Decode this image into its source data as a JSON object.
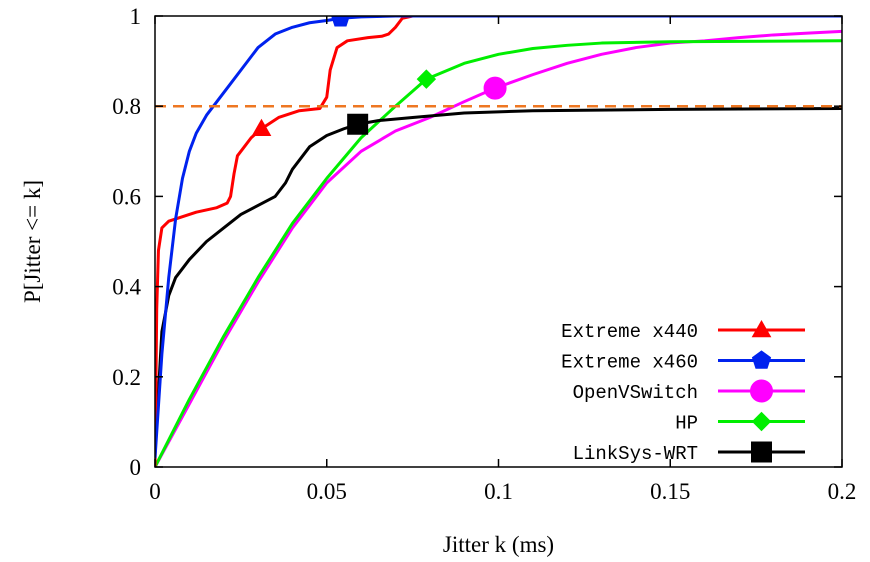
{
  "chart_data": {
    "type": "line",
    "title": "",
    "xlabel": "Jitter k (ms)",
    "ylabel": "P[Jitter <= k]",
    "xlim": [
      0,
      0.2
    ],
    "ylim": [
      0,
      1
    ],
    "x_ticks": [
      "0",
      "0.05",
      "0.1",
      "0.15",
      "0.2"
    ],
    "y_ticks": [
      "0",
      "0.2",
      "0.4",
      "0.6",
      "0.8",
      "1"
    ],
    "grid": false,
    "legend_position": "bottom-right",
    "reference_line": {
      "y": 0.8,
      "style": "dashed",
      "color": "#ee7722"
    },
    "series": [
      {
        "name": "Extreme x440",
        "color": "#ff0000",
        "marker": "triangle",
        "marker_point": [
          0.031,
          0.75
        ],
        "points": [
          [
            0,
            0.0
          ],
          [
            0.0005,
            0.35
          ],
          [
            0.001,
            0.48
          ],
          [
            0.002,
            0.53
          ],
          [
            0.004,
            0.545
          ],
          [
            0.008,
            0.555
          ],
          [
            0.012,
            0.565
          ],
          [
            0.018,
            0.575
          ],
          [
            0.021,
            0.585
          ],
          [
            0.022,
            0.6
          ],
          [
            0.023,
            0.65
          ],
          [
            0.024,
            0.69
          ],
          [
            0.026,
            0.71
          ],
          [
            0.028,
            0.73
          ],
          [
            0.031,
            0.75
          ],
          [
            0.036,
            0.775
          ],
          [
            0.042,
            0.79
          ],
          [
            0.048,
            0.795
          ],
          [
            0.05,
            0.82
          ],
          [
            0.051,
            0.88
          ],
          [
            0.053,
            0.93
          ],
          [
            0.056,
            0.945
          ],
          [
            0.062,
            0.952
          ],
          [
            0.066,
            0.955
          ],
          [
            0.068,
            0.96
          ],
          [
            0.07,
            0.975
          ],
          [
            0.072,
            0.995
          ],
          [
            0.075,
            1.0
          ],
          [
            0.117,
            1.0
          ]
        ]
      },
      {
        "name": "Extreme x460",
        "color": "#0022ee",
        "marker": "pentagon",
        "marker_point": [
          0.054,
          0.995
        ],
        "points": [
          [
            0,
            0.02
          ],
          [
            0.002,
            0.25
          ],
          [
            0.004,
            0.42
          ],
          [
            0.006,
            0.55
          ],
          [
            0.008,
            0.64
          ],
          [
            0.01,
            0.7
          ],
          [
            0.012,
            0.74
          ],
          [
            0.015,
            0.78
          ],
          [
            0.018,
            0.81
          ],
          [
            0.021,
            0.84
          ],
          [
            0.025,
            0.88
          ],
          [
            0.03,
            0.93
          ],
          [
            0.035,
            0.96
          ],
          [
            0.04,
            0.975
          ],
          [
            0.045,
            0.985
          ],
          [
            0.05,
            0.99
          ],
          [
            0.054,
            0.995
          ],
          [
            0.06,
            0.998
          ],
          [
            0.07,
            1.0
          ],
          [
            0.2,
            1.0
          ]
        ]
      },
      {
        "name": "OpenVSwitch",
        "color": "#ff00ff",
        "marker": "circle",
        "marker_point": [
          0.099,
          0.84
        ],
        "points": [
          [
            0,
            0.0
          ],
          [
            0.01,
            0.14
          ],
          [
            0.02,
            0.28
          ],
          [
            0.03,
            0.41
          ],
          [
            0.04,
            0.53
          ],
          [
            0.05,
            0.63
          ],
          [
            0.06,
            0.7
          ],
          [
            0.07,
            0.745
          ],
          [
            0.08,
            0.775
          ],
          [
            0.09,
            0.81
          ],
          [
            0.099,
            0.84
          ],
          [
            0.11,
            0.87
          ],
          [
            0.12,
            0.895
          ],
          [
            0.13,
            0.915
          ],
          [
            0.14,
            0.93
          ],
          [
            0.15,
            0.94
          ],
          [
            0.16,
            0.945
          ],
          [
            0.17,
            0.952
          ],
          [
            0.18,
            0.958
          ],
          [
            0.19,
            0.962
          ],
          [
            0.2,
            0.966
          ]
        ]
      },
      {
        "name": "HP",
        "color": "#00ee00",
        "marker": "diamond",
        "marker_point": [
          0.079,
          0.86
        ],
        "points": [
          [
            0,
            0.0
          ],
          [
            0.01,
            0.15
          ],
          [
            0.02,
            0.29
          ],
          [
            0.03,
            0.42
          ],
          [
            0.04,
            0.54
          ],
          [
            0.05,
            0.64
          ],
          [
            0.06,
            0.73
          ],
          [
            0.07,
            0.8
          ],
          [
            0.079,
            0.86
          ],
          [
            0.09,
            0.895
          ],
          [
            0.1,
            0.915
          ],
          [
            0.11,
            0.928
          ],
          [
            0.12,
            0.935
          ],
          [
            0.13,
            0.94
          ],
          [
            0.15,
            0.943
          ],
          [
            0.2,
            0.945
          ]
        ]
      },
      {
        "name": "LinkSys-WRT",
        "color": "#000000",
        "marker": "square",
        "marker_point": [
          0.059,
          0.76
        ],
        "points": [
          [
            0,
            0.03
          ],
          [
            0.002,
            0.3
          ],
          [
            0.004,
            0.38
          ],
          [
            0.006,
            0.42
          ],
          [
            0.01,
            0.46
          ],
          [
            0.015,
            0.5
          ],
          [
            0.02,
            0.53
          ],
          [
            0.025,
            0.56
          ],
          [
            0.03,
            0.58
          ],
          [
            0.035,
            0.6
          ],
          [
            0.038,
            0.63
          ],
          [
            0.04,
            0.66
          ],
          [
            0.045,
            0.71
          ],
          [
            0.05,
            0.735
          ],
          [
            0.055,
            0.75
          ],
          [
            0.059,
            0.76
          ],
          [
            0.065,
            0.768
          ],
          [
            0.075,
            0.775
          ],
          [
            0.09,
            0.785
          ],
          [
            0.11,
            0.79
          ],
          [
            0.15,
            0.793
          ],
          [
            0.2,
            0.795
          ]
        ]
      }
    ]
  }
}
